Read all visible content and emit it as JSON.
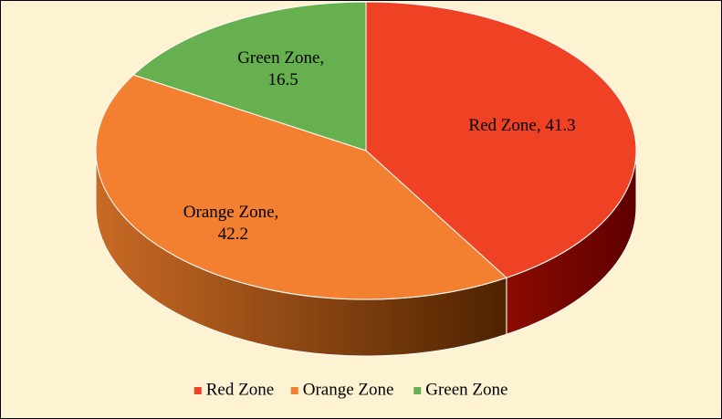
{
  "chart_data": {
    "type": "pie",
    "categories": [
      "Red Zone",
      "Orange Zone",
      "Green Zone"
    ],
    "values": [
      41.3,
      42.2,
      16.5
    ],
    "value_labels": [
      "Red Zone, 41.3",
      "Orange Zone, 42.2",
      "Green Zone, 16.5"
    ],
    "colors": [
      "#ef4123",
      "#f37f31",
      "#67b04f"
    ],
    "legend": "bottom"
  }
}
